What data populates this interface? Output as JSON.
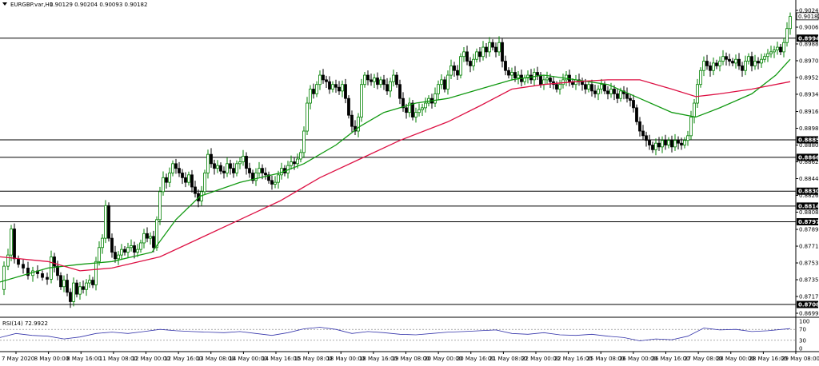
{
  "header": {
    "symbol_label": "EURGBP.var,H1",
    "ohlc": "0.90129 0.90204 0.90093 0.90182"
  },
  "rsi_header": "RSI(14) 72.9922",
  "colors": {
    "bull": "#008000",
    "bear": "#000000",
    "ma_fast": "#119911",
    "ma_slow": "#dd1144",
    "rsi": "#3333aa",
    "hline": "#000000"
  },
  "chart_data": {
    "type": "candlestick",
    "ylim": [
      0.86995,
      0.90245
    ],
    "price_ticks": [
      "0.90245",
      "0.90065",
      "0.89885",
      "0.89705",
      "0.89525",
      "0.89345",
      "0.89160",
      "0.88980",
      "0.88800",
      "0.88620",
      "0.88440",
      "0.88260",
      "0.88080",
      "0.87895",
      "0.87715",
      "0.87535",
      "0.87355",
      "0.87175",
      "0.86995"
    ],
    "current_price": "0.90182",
    "horizontal_levels": [
      {
        "value": 0.89947,
        "label": "0.89947"
      },
      {
        "value": 0.88856,
        "label": "0.88856"
      },
      {
        "value": 0.88668,
        "label": "0.88668"
      },
      {
        "value": 0.88305,
        "label": "0.88305"
      },
      {
        "value": 0.88145,
        "label": "0.88145"
      },
      {
        "value": 0.87977,
        "label": "0.87977"
      },
      {
        "value": 0.87089,
        "label": "0.87089"
      }
    ],
    "time_labels": [
      "7 May 2020",
      "8 May 00:00",
      "8 May 16:00",
      "11 May 08:00",
      "12 May 00:00",
      "12 May 16:00",
      "13 May 08:00",
      "14 May 00:00",
      "14 May 16:00",
      "15 May 08:00",
      "18 May 00:00",
      "18 May 16:00",
      "19 May 08:00",
      "20 May 00:00",
      "20 May 16:00",
      "21 May 08:00",
      "22 May 00:00",
      "22 May 16:00",
      "25 May 08:00",
      "26 May 00:00",
      "26 May 16:00",
      "27 May 08:00",
      "28 May 00:00",
      "28 May 16:00",
      "29 May 08:00"
    ],
    "close_path": [
      [
        0,
        0.8725
      ],
      [
        6,
        0.875
      ],
      [
        10,
        0.8762
      ],
      [
        14,
        0.879
      ],
      [
        18,
        0.8758
      ],
      [
        24,
        0.8752
      ],
      [
        30,
        0.8748
      ],
      [
        36,
        0.874
      ],
      [
        42,
        0.8745
      ],
      [
        48,
        0.8742
      ],
      [
        54,
        0.8738
      ],
      [
        60,
        0.8736
      ],
      [
        64,
        0.876
      ],
      [
        68,
        0.875
      ],
      [
        72,
        0.874
      ],
      [
        76,
        0.8728
      ],
      [
        80,
        0.8735
      ],
      [
        84,
        0.8722
      ],
      [
        88,
        0.8712
      ],
      [
        92,
        0.8732
      ],
      [
        96,
        0.872
      ],
      [
        100,
        0.8728
      ],
      [
        104,
        0.8725
      ],
      [
        108,
        0.8732
      ],
      [
        112,
        0.8735
      ],
      [
        116,
        0.873
      ],
      [
        120,
        0.8755
      ],
      [
        124,
        0.877
      ],
      [
        128,
        0.878
      ],
      [
        132,
        0.8815
      ],
      [
        136,
        0.878
      ],
      [
        140,
        0.8765
      ],
      [
        144,
        0.8758
      ],
      [
        148,
        0.8762
      ],
      [
        152,
        0.8768
      ],
      [
        156,
        0.8765
      ],
      [
        160,
        0.877
      ],
      [
        164,
        0.8772
      ],
      [
        168,
        0.8765
      ],
      [
        172,
        0.8768
      ],
      [
        176,
        0.8775
      ],
      [
        180,
        0.8785
      ],
      [
        184,
        0.878
      ],
      [
        188,
        0.8782
      ],
      [
        192,
        0.877
      ],
      [
        196,
        0.88
      ],
      [
        200,
        0.883
      ],
      [
        204,
        0.8845
      ],
      [
        208,
        0.884
      ],
      [
        212,
        0.885
      ],
      [
        216,
        0.886
      ],
      [
        220,
        0.8855
      ],
      [
        224,
        0.885
      ],
      [
        228,
        0.8845
      ],
      [
        232,
        0.884
      ],
      [
        236,
        0.8848
      ],
      [
        240,
        0.8835
      ],
      [
        244,
        0.8828
      ],
      [
        248,
        0.882
      ],
      [
        252,
        0.883
      ],
      [
        256,
        0.885
      ],
      [
        260,
        0.887
      ],
      [
        264,
        0.886
      ],
      [
        268,
        0.8855
      ],
      [
        272,
        0.8858
      ],
      [
        276,
        0.8852
      ],
      [
        280,
        0.885
      ],
      [
        284,
        0.886
      ],
      [
        288,
        0.8855
      ],
      [
        292,
        0.885
      ],
      [
        296,
        0.886
      ],
      [
        300,
        0.8862
      ],
      [
        304,
        0.8868
      ],
      [
        308,
        0.8855
      ],
      [
        312,
        0.885
      ],
      [
        316,
        0.8842
      ],
      [
        320,
        0.885
      ],
      [
        324,
        0.8855
      ],
      [
        328,
        0.885
      ],
      [
        332,
        0.8848
      ],
      [
        336,
        0.8842
      ],
      [
        340,
        0.8838
      ],
      [
        344,
        0.884
      ],
      [
        348,
        0.8848
      ],
      [
        352,
        0.8855
      ],
      [
        356,
        0.885
      ],
      [
        360,
        0.8858
      ],
      [
        364,
        0.8862
      ],
      [
        368,
        0.886
      ],
      [
        372,
        0.8865
      ],
      [
        376,
        0.8872
      ],
      [
        380,
        0.8895
      ],
      [
        384,
        0.8925
      ],
      [
        388,
        0.894
      ],
      [
        392,
        0.8935
      ],
      [
        396,
        0.8945
      ],
      [
        400,
        0.8955
      ],
      [
        404,
        0.895
      ],
      [
        408,
        0.8948
      ],
      [
        412,
        0.894
      ],
      [
        416,
        0.8945
      ],
      [
        420,
        0.8942
      ],
      [
        424,
        0.8938
      ],
      [
        428,
        0.8945
      ],
      [
        432,
        0.893
      ],
      [
        436,
        0.8912
      ],
      [
        440,
        0.89
      ],
      [
        444,
        0.8895
      ],
      [
        448,
        0.891
      ],
      [
        452,
        0.8945
      ],
      [
        456,
        0.8955
      ],
      [
        460,
        0.895
      ],
      [
        464,
        0.8948
      ],
      [
        468,
        0.8952
      ],
      [
        472,
        0.8945
      ],
      [
        476,
        0.895
      ],
      [
        480,
        0.8945
      ],
      [
        484,
        0.8938
      ],
      [
        488,
        0.8948
      ],
      [
        492,
        0.8955
      ],
      [
        496,
        0.8945
      ],
      [
        500,
        0.893
      ],
      [
        504,
        0.892
      ],
      [
        508,
        0.8915
      ],
      [
        512,
        0.8925
      ],
      [
        516,
        0.891
      ],
      [
        520,
        0.8915
      ],
      [
        524,
        0.8918
      ],
      [
        528,
        0.892
      ],
      [
        532,
        0.8925
      ],
      [
        536,
        0.893
      ],
      [
        540,
        0.8925
      ],
      [
        544,
        0.8935
      ],
      [
        548,
        0.8945
      ],
      [
        552,
        0.895
      ],
      [
        556,
        0.894
      ],
      [
        560,
        0.8955
      ],
      [
        564,
        0.8965
      ],
      [
        568,
        0.896
      ],
      [
        572,
        0.8955
      ],
      [
        576,
        0.8975
      ],
      [
        580,
        0.898
      ],
      [
        584,
        0.897
      ],
      [
        588,
        0.8965
      ],
      [
        592,
        0.8972
      ],
      [
        596,
        0.898
      ],
      [
        600,
        0.8975
      ],
      [
        604,
        0.8985
      ],
      [
        608,
        0.898
      ],
      [
        612,
        0.899
      ],
      [
        616,
        0.8985
      ],
      [
        620,
        0.898
      ],
      [
        624,
        0.899
      ],
      [
        628,
        0.897
      ],
      [
        632,
        0.896
      ],
      [
        636,
        0.8955
      ],
      [
        640,
        0.8958
      ],
      [
        644,
        0.8952
      ],
      [
        648,
        0.8955
      ],
      [
        652,
        0.8948
      ],
      [
        656,
        0.8952
      ],
      [
        660,
        0.8955
      ],
      [
        664,
        0.895
      ],
      [
        668,
        0.8958
      ],
      [
        672,
        0.8955
      ],
      [
        676,
        0.8945
      ],
      [
        680,
        0.895
      ],
      [
        684,
        0.8952
      ],
      [
        688,
        0.8948
      ],
      [
        692,
        0.8945
      ],
      [
        696,
        0.894
      ],
      [
        700,
        0.8945
      ],
      [
        704,
        0.895
      ],
      [
        708,
        0.8955
      ],
      [
        712,
        0.8948
      ],
      [
        716,
        0.8945
      ],
      [
        720,
        0.895
      ],
      [
        724,
        0.8948
      ],
      [
        728,
        0.8945
      ],
      [
        732,
        0.894
      ],
      [
        736,
        0.8945
      ],
      [
        740,
        0.8938
      ],
      [
        744,
        0.8935
      ],
      [
        748,
        0.894
      ],
      [
        752,
        0.8945
      ],
      [
        756,
        0.8938
      ],
      [
        760,
        0.8935
      ],
      [
        764,
        0.894
      ],
      [
        768,
        0.8935
      ],
      [
        772,
        0.893
      ],
      [
        776,
        0.8938
      ],
      [
        780,
        0.8935
      ],
      [
        784,
        0.893
      ],
      [
        788,
        0.8928
      ],
      [
        792,
        0.892
      ],
      [
        796,
        0.8905
      ],
      [
        800,
        0.8895
      ],
      [
        804,
        0.889
      ],
      [
        808,
        0.8885
      ],
      [
        812,
        0.888
      ],
      [
        816,
        0.8875
      ],
      [
        820,
        0.8882
      ],
      [
        824,
        0.8878
      ],
      [
        828,
        0.8885
      ],
      [
        832,
        0.888
      ],
      [
        836,
        0.8885
      ],
      [
        840,
        0.8878
      ],
      [
        844,
        0.8885
      ],
      [
        848,
        0.8882
      ],
      [
        852,
        0.888
      ],
      [
        856,
        0.8885
      ],
      [
        860,
        0.889
      ],
      [
        864,
        0.891
      ],
      [
        868,
        0.8925
      ],
      [
        872,
        0.8945
      ],
      [
        876,
        0.896
      ],
      [
        880,
        0.897
      ],
      [
        884,
        0.8965
      ],
      [
        888,
        0.896
      ],
      [
        892,
        0.8968
      ],
      [
        896,
        0.8965
      ],
      [
        900,
        0.897
      ],
      [
        904,
        0.8975
      ],
      [
        908,
        0.8972
      ],
      [
        912,
        0.897
      ],
      [
        916,
        0.8968
      ],
      [
        920,
        0.8972
      ],
      [
        924,
        0.8965
      ],
      [
        928,
        0.896
      ],
      [
        932,
        0.897
      ],
      [
        936,
        0.8975
      ],
      [
        940,
        0.8965
      ],
      [
        944,
        0.897
      ],
      [
        948,
        0.8968
      ],
      [
        952,
        0.8972
      ],
      [
        956,
        0.8975
      ],
      [
        960,
        0.8978
      ],
      [
        964,
        0.898
      ],
      [
        968,
        0.8982
      ],
      [
        972,
        0.8985
      ],
      [
        976,
        0.898
      ],
      [
        980,
        0.899
      ],
      [
        984,
        0.9005
      ],
      [
        988,
        0.9018
      ]
    ],
    "ma_fast": [
      [
        0,
        0.8733
      ],
      [
        60,
        0.8748
      ],
      [
        100,
        0.8752
      ],
      [
        140,
        0.8755
      ],
      [
        190,
        0.8765
      ],
      [
        220,
        0.88
      ],
      [
        250,
        0.8825
      ],
      [
        300,
        0.884
      ],
      [
        350,
        0.885
      ],
      [
        380,
        0.886
      ],
      [
        420,
        0.888
      ],
      [
        450,
        0.89
      ],
      [
        480,
        0.8915
      ],
      [
        520,
        0.8925
      ],
      [
        560,
        0.893
      ],
      [
        600,
        0.894
      ],
      [
        640,
        0.895
      ],
      [
        680,
        0.8955
      ],
      [
        720,
        0.895
      ],
      [
        760,
        0.8945
      ],
      [
        800,
        0.893
      ],
      [
        840,
        0.8915
      ],
      [
        870,
        0.891
      ],
      [
        900,
        0.892
      ],
      [
        940,
        0.8935
      ],
      [
        970,
        0.8955
      ],
      [
        988,
        0.8972
      ]
    ],
    "ma_slow": [
      [
        0,
        0.876
      ],
      [
        60,
        0.8755
      ],
      [
        100,
        0.8745
      ],
      [
        140,
        0.8748
      ],
      [
        200,
        0.876
      ],
      [
        250,
        0.878
      ],
      [
        300,
        0.88
      ],
      [
        350,
        0.882
      ],
      [
        400,
        0.8845
      ],
      [
        450,
        0.8865
      ],
      [
        500,
        0.8885
      ],
      [
        560,
        0.8905
      ],
      [
        600,
        0.8922
      ],
      [
        640,
        0.894
      ],
      [
        680,
        0.8945
      ],
      [
        720,
        0.8948
      ],
      [
        760,
        0.895
      ],
      [
        800,
        0.895
      ],
      [
        840,
        0.894
      ],
      [
        870,
        0.8932
      ],
      [
        900,
        0.8935
      ],
      [
        940,
        0.894
      ],
      [
        988,
        0.8948
      ]
    ],
    "rsi": {
      "levels": [
        "100",
        "70",
        "30",
        "0"
      ],
      "ylim": [
        0,
        100
      ],
      "values": [
        [
          0,
          40
        ],
        [
          20,
          55
        ],
        [
          40,
          48
        ],
        [
          60,
          45
        ],
        [
          80,
          35
        ],
        [
          100,
          42
        ],
        [
          120,
          55
        ],
        [
          140,
          60
        ],
        [
          160,
          55
        ],
        [
          180,
          62
        ],
        [
          200,
          70
        ],
        [
          220,
          65
        ],
        [
          240,
          62
        ],
        [
          260,
          60
        ],
        [
          280,
          58
        ],
        [
          300,
          62
        ],
        [
          320,
          55
        ],
        [
          340,
          48
        ],
        [
          360,
          58
        ],
        [
          380,
          72
        ],
        [
          400,
          78
        ],
        [
          420,
          70
        ],
        [
          440,
          55
        ],
        [
          460,
          62
        ],
        [
          480,
          58
        ],
        [
          500,
          52
        ],
        [
          520,
          50
        ],
        [
          540,
          55
        ],
        [
          560,
          60
        ],
        [
          580,
          62
        ],
        [
          600,
          65
        ],
        [
          620,
          68
        ],
        [
          640,
          55
        ],
        [
          660,
          52
        ],
        [
          680,
          58
        ],
        [
          700,
          50
        ],
        [
          720,
          48
        ],
        [
          740,
          52
        ],
        [
          760,
          45
        ],
        [
          780,
          40
        ],
        [
          800,
          28
        ],
        [
          820,
          35
        ],
        [
          840,
          32
        ],
        [
          860,
          45
        ],
        [
          880,
          75
        ],
        [
          900,
          68
        ],
        [
          920,
          70
        ],
        [
          940,
          62
        ],
        [
          960,
          65
        ],
        [
          988,
          73
        ]
      ]
    }
  }
}
